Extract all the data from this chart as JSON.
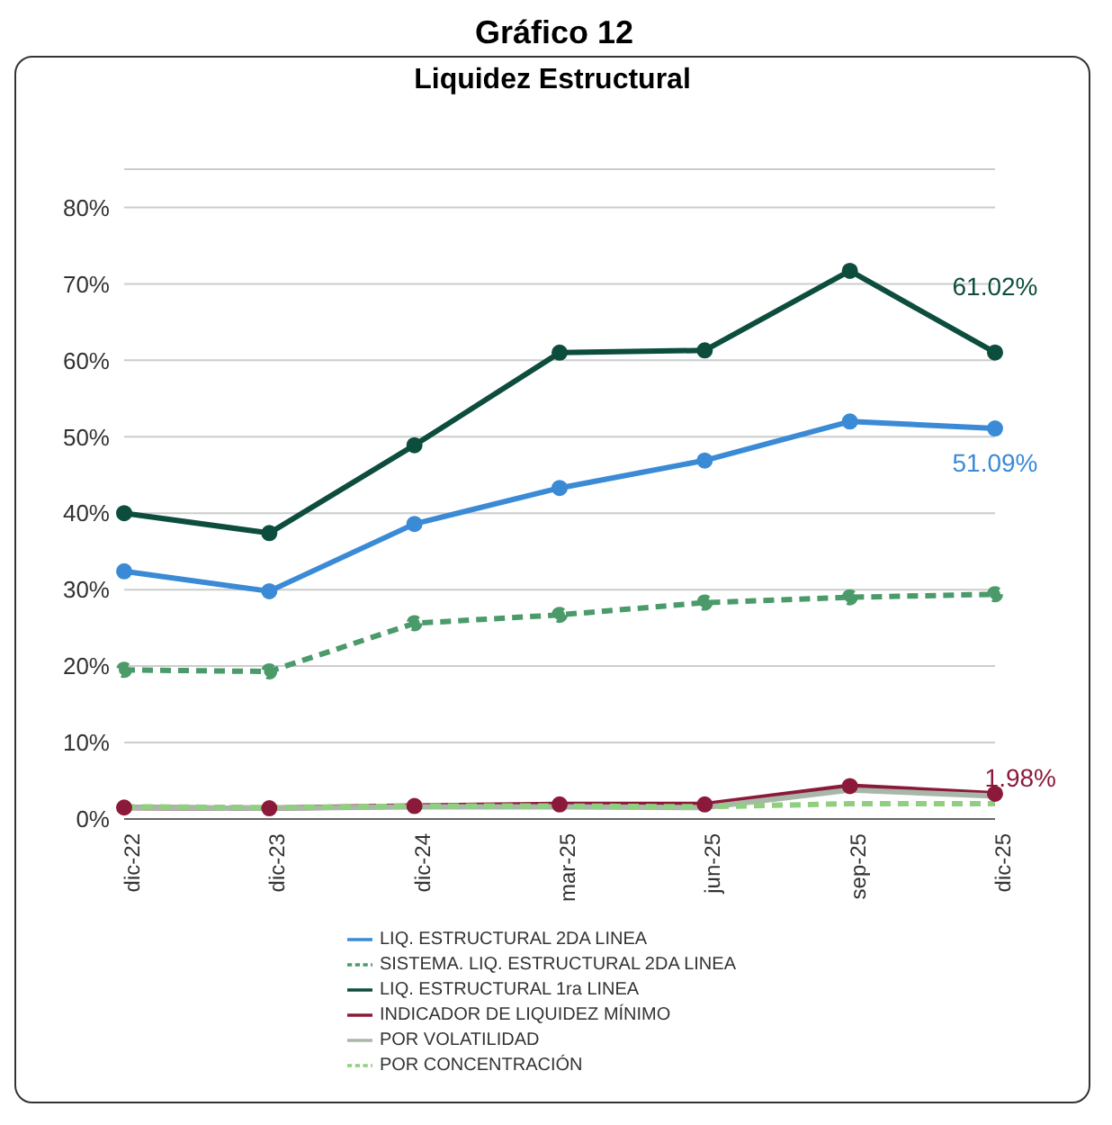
{
  "chart_data": {
    "type": "line",
    "title": "Gráfico 12",
    "subtitle": "Liquidez Estructural",
    "categories": [
      "dic-22",
      "dic-23",
      "dic-24",
      "mar-25",
      "jun-25",
      "sep-25",
      "dic-25"
    ],
    "ylim": [
      0,
      85
    ],
    "yticks": [
      {
        "value": 0,
        "label": "0%"
      },
      {
        "value": 10,
        "label": "10%"
      },
      {
        "value": 20,
        "label": "20%"
      },
      {
        "value": 30,
        "label": "30%"
      },
      {
        "value": 40,
        "label": "40%"
      },
      {
        "value": 50,
        "label": "50%"
      },
      {
        "value": 60,
        "label": "60%"
      },
      {
        "value": 70,
        "label": "70%"
      },
      {
        "value": 80,
        "label": "80%"
      }
    ],
    "grid": "y",
    "legend": "bottom",
    "marker": "circle",
    "series": [
      {
        "name": "LIQ. ESTRUCTURAL 2DA LINEA",
        "color": "#3a8ad6",
        "values": [
          32.4,
          29.8,
          38.6,
          43.3,
          46.9,
          52.0,
          51.09
        ],
        "value_labels": [
          null,
          null,
          null,
          null,
          null,
          null,
          "51.09%"
        ]
      },
      {
        "name": "SISTEMA. LIQ. ESTRUCTURAL 2DA LINEA",
        "color": "#4a9a6a",
        "line_style": "dashed",
        "values": [
          19.5,
          19.3,
          25.6,
          26.7,
          28.3,
          29.0,
          29.4
        ]
      },
      {
        "name": "LIQ. ESTRUCTURAL 1ra LINEA",
        "color": "#0d4d3e",
        "values": [
          40.0,
          37.4,
          48.9,
          61.0,
          61.3,
          71.7,
          61.02
        ],
        "value_labels": [
          null,
          null,
          null,
          null,
          null,
          null,
          "61.02%"
        ]
      },
      {
        "name": "INDICADOR DE LIQUIDEZ MÍNIMO",
        "color": "#8b1a3a",
        "values": [
          1.5,
          1.4,
          1.7,
          1.9,
          1.9,
          4.3,
          3.3
        ]
      },
      {
        "name": "POR VOLATILIDAD",
        "color": "#a8b8a8",
        "marker": "none",
        "values": [
          1.5,
          1.4,
          1.6,
          1.6,
          1.5,
          3.8,
          3.0
        ]
      },
      {
        "name": "POR CONCENTRACIÓN",
        "color": "#8fcf7f",
        "marker": "none",
        "line_style": "dashed",
        "values": [
          1.6,
          1.5,
          1.7,
          1.7,
          1.6,
          2.0,
          2.0
        ]
      }
    ],
    "annotations": [
      "1.98%"
    ]
  }
}
